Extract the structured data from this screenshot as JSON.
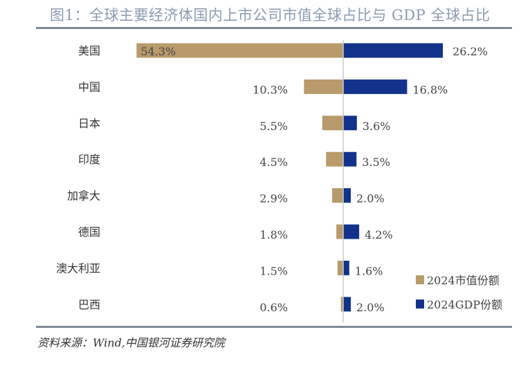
{
  "title": "图1：全球主要经济体国内上市公司市值全球占比与 GDP 全球占比",
  "source": "资料来源：Wind,中国银河证券研究院",
  "chart_data": {
    "type": "bar",
    "orientation": "horizontal-diverging",
    "categories": [
      "美国",
      "中国",
      "日本",
      "印度",
      "加拿大",
      "德国",
      "澳大利亚",
      "巴西"
    ],
    "series": [
      {
        "name": "2024市值份额",
        "color": "#b89a6b",
        "values": [
          54.3,
          10.3,
          5.5,
          4.5,
          2.9,
          1.8,
          1.5,
          0.6
        ],
        "labels": [
          "54.3%",
          "10.3%",
          "5.5%",
          "4.5%",
          "2.9%",
          "1.8%",
          "1.5%",
          "0.6%"
        ]
      },
      {
        "name": "2024GDP份额",
        "color": "#12328c",
        "values": [
          26.2,
          16.8,
          3.6,
          3.5,
          2.0,
          4.2,
          1.6,
          2.0
        ],
        "labels": [
          "26.2%",
          "16.8%",
          "3.6%",
          "3.5%",
          "2.0%",
          "4.2%",
          "1.6%",
          "2.0%"
        ]
      }
    ],
    "unit": "%",
    "legend": "bottom-right",
    "grid": false
  }
}
